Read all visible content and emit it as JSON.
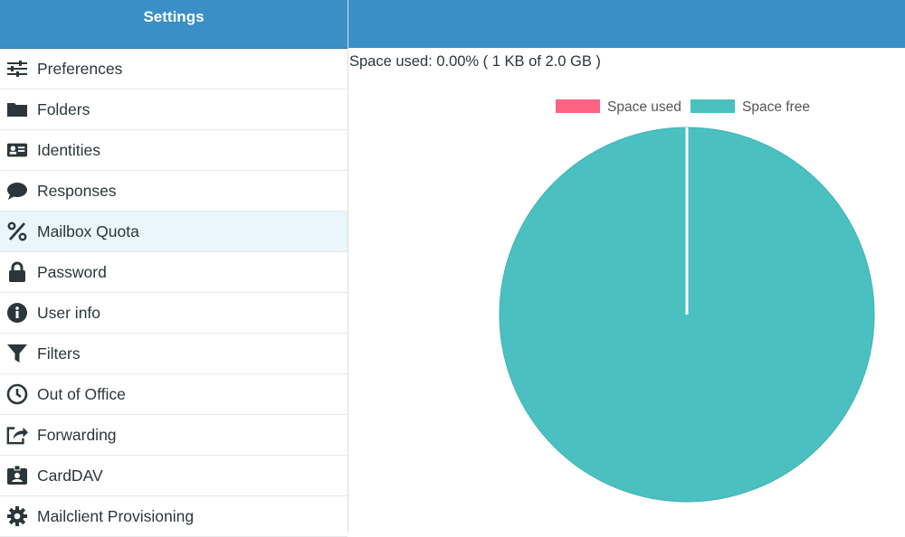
{
  "sidebar": {
    "title": "Settings",
    "items": [
      {
        "label": "Preferences",
        "icon": "sliders-icon"
      },
      {
        "label": "Folders",
        "icon": "folder-icon"
      },
      {
        "label": "Identities",
        "icon": "id-card-icon"
      },
      {
        "label": "Responses",
        "icon": "chat-bubble-icon"
      },
      {
        "label": "Mailbox Quota",
        "icon": "percent-icon",
        "selected": true
      },
      {
        "label": "Password",
        "icon": "lock-icon"
      },
      {
        "label": "User info",
        "icon": "info-icon"
      },
      {
        "label": "Filters",
        "icon": "filter-icon"
      },
      {
        "label": "Out of Office",
        "icon": "clock-icon"
      },
      {
        "label": "Forwarding",
        "icon": "share-icon"
      },
      {
        "label": "CardDAV",
        "icon": "contact-badge-icon"
      },
      {
        "label": "Mailclient Provisioning",
        "icon": "gear-icon"
      }
    ]
  },
  "main": {
    "quota_text": "Space used: 0.00% ( 1 KB of 2.0 GB )"
  },
  "chart_data": {
    "type": "pie",
    "categories": [
      "Space used",
      "Space free"
    ],
    "values": [
      5e-05,
      99.99995
    ],
    "colors": [
      "#ff6384",
      "#4bc0c0"
    ],
    "legend_position": "top"
  }
}
